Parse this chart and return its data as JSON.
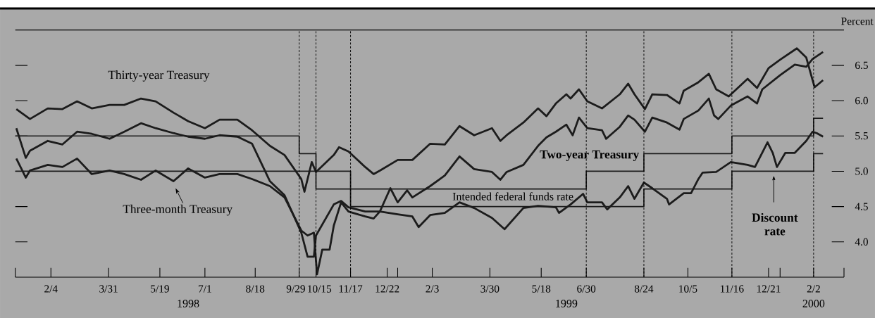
{
  "chart_data": {
    "type": "line",
    "ylabel": "Percent",
    "xlim": [
      "1998-01-01",
      "2000-03-02"
    ],
    "xticks": [
      {
        "value": "1998-01-01",
        "label": null
      },
      {
        "value": "1998-02-04",
        "label": "2/4"
      },
      {
        "value": "1998-03-31",
        "label": "3/31"
      },
      {
        "value": "1998-05-19",
        "label": "5/19"
      },
      {
        "value": "1998-07-01",
        "label": "7/1"
      },
      {
        "value": "1998-08-18",
        "label": "8/18"
      },
      {
        "value": "1998-09-29",
        "label": "9/29"
      },
      {
        "value": "1998-10-15",
        "label": "10/15"
      },
      {
        "value": "1998-11-17",
        "label": "11/17"
      },
      {
        "value": "1998-12-22",
        "label": "12/22"
      },
      {
        "value": "1999-01-01",
        "label": null
      },
      {
        "value": "1999-02-03",
        "label": "2/3"
      },
      {
        "value": "1999-03-30",
        "label": "3/30"
      },
      {
        "value": "1999-05-18",
        "label": "5/18"
      },
      {
        "value": "1999-06-30",
        "label": "6/30"
      },
      {
        "value": "1999-08-24",
        "label": "8/24"
      },
      {
        "value": "1999-10-05",
        "label": "10/5"
      },
      {
        "value": "1999-11-16",
        "label": "11/16"
      },
      {
        "value": "1999-12-21",
        "label": "12/21"
      },
      {
        "value": "2000-01-01",
        "label": null
      },
      {
        "value": "2000-02-02",
        "label": "2/2"
      },
      {
        "value": "2000-03-02",
        "label": null
      }
    ],
    "ylim": [
      3.5,
      7.0
    ],
    "yticks": [
      {
        "value": 4.0,
        "label": "4.0"
      },
      4.5,
      {
        "value": 5.0,
        "label": "5.0"
      },
      5.5,
      {
        "value": 6.0,
        "label": "6.0"
      },
      6.5
    ],
    "series": [
      {
        "name": "Thirty-year Treasury",
        "color": "#1c1c1c",
        "x": [
          "1998-01-02",
          "1998-01-15",
          "1998-02-01",
          "1998-02-15",
          "1998-03-01",
          "1998-03-15",
          "1998-04-01",
          "1998-04-15",
          "1998-05-01",
          "1998-05-15",
          "1998-06-01",
          "1998-06-15",
          "1998-07-01",
          "1998-07-15",
          "1998-08-01",
          "1998-08-15",
          "1998-09-01",
          "1998-09-15",
          "1998-10-01",
          "1998-10-04",
          "1998-10-11",
          "1998-10-15",
          "1998-11-01",
          "1998-11-06",
          "1998-11-15",
          "1998-12-01",
          "1998-12-09",
          "1998-12-15",
          "1999-01-01",
          "1999-01-15",
          "1999-02-01",
          "1999-02-15",
          "1999-03-01",
          "1999-03-15",
          "1999-04-01",
          "1999-04-09",
          "1999-04-15",
          "1999-05-01",
          "1999-05-15",
          "1999-05-23",
          "1999-06-01",
          "1999-06-11",
          "1999-06-15",
          "1999-06-23",
          "1999-07-01",
          "1999-07-15",
          "1999-08-01",
          "1999-08-09",
          "1999-08-15",
          "1999-08-25",
          "1999-09-01",
          "1999-09-15",
          "1999-09-27",
          "1999-10-01",
          "1999-10-15",
          "1999-10-25",
          "1999-11-01",
          "1999-11-13",
          "1999-12-01",
          "1999-12-10",
          "1999-12-21",
          "2000-01-01",
          "2000-01-17",
          "2000-01-26",
          "2000-02-01",
          "2000-02-03",
          "2000-02-11"
        ],
        "values": [
          5.88,
          5.74,
          5.89,
          5.88,
          5.99,
          5.89,
          5.94,
          5.94,
          6.03,
          5.99,
          5.83,
          5.71,
          5.61,
          5.73,
          5.73,
          5.58,
          5.36,
          5.23,
          4.89,
          4.71,
          5.13,
          4.99,
          5.23,
          5.34,
          5.28,
          5.06,
          4.96,
          5.01,
          5.16,
          5.16,
          5.39,
          5.38,
          5.64,
          5.51,
          5.61,
          5.43,
          5.51,
          5.69,
          5.89,
          5.78,
          5.96,
          6.09,
          6.03,
          6.16,
          5.99,
          5.89,
          6.09,
          6.24,
          6.09,
          5.88,
          6.09,
          6.08,
          5.96,
          6.14,
          6.26,
          6.38,
          6.16,
          6.06,
          6.31,
          6.18,
          6.46,
          6.58,
          6.74,
          6.61,
          6.29,
          6.19,
          6.29
        ]
      },
      {
        "name": "Two-year Treasury",
        "color": "#1c1c1c",
        "x": [
          "1998-01-02",
          "1998-01-11",
          "1998-01-15",
          "1998-02-01",
          "1998-02-15",
          "1998-03-01",
          "1998-03-15",
          "1998-04-01",
          "1998-04-15",
          "1998-05-01",
          "1998-05-15",
          "1998-06-01",
          "1998-06-15",
          "1998-07-01",
          "1998-07-15",
          "1998-08-01",
          "1998-08-15",
          "1998-09-01",
          "1998-09-15",
          "1998-10-01",
          "1998-10-07",
          "1998-10-13",
          "1998-10-15",
          "1998-11-01",
          "1998-11-08",
          "1998-11-15",
          "1998-12-01",
          "1998-12-15",
          "1998-12-25",
          "1999-01-01",
          "1999-01-10",
          "1999-01-15",
          "1999-02-01",
          "1999-02-15",
          "1999-03-01",
          "1999-03-15",
          "1999-04-01",
          "1999-04-09",
          "1999-04-15",
          "1999-05-01",
          "1999-05-15",
          "1999-05-23",
          "1999-06-01",
          "1999-06-11",
          "1999-06-17",
          "1999-06-23",
          "1999-07-01",
          "1999-07-15",
          "1999-07-19",
          "1999-08-01",
          "1999-08-09",
          "1999-08-15",
          "1999-08-25",
          "1999-09-01",
          "1999-09-15",
          "1999-09-27",
          "1999-10-01",
          "1999-10-15",
          "1999-10-25",
          "1999-10-30",
          "1999-11-03",
          "1999-11-15",
          "1999-12-01",
          "1999-12-10",
          "1999-12-15",
          "2000-01-01",
          "2000-01-15",
          "2000-01-26",
          "2000-02-01",
          "2000-02-11"
        ],
        "values": [
          5.61,
          5.19,
          5.29,
          5.43,
          5.38,
          5.56,
          5.53,
          5.46,
          5.56,
          5.68,
          5.61,
          5.54,
          5.49,
          5.46,
          5.51,
          5.49,
          5.39,
          4.86,
          4.66,
          4.13,
          3.79,
          3.79,
          4.09,
          4.53,
          4.58,
          4.49,
          4.43,
          4.43,
          4.76,
          4.56,
          4.73,
          4.63,
          4.79,
          4.94,
          5.21,
          5.03,
          4.99,
          4.88,
          4.99,
          5.09,
          5.36,
          5.48,
          5.56,
          5.66,
          5.51,
          5.76,
          5.61,
          5.58,
          5.46,
          5.63,
          5.79,
          5.73,
          5.56,
          5.76,
          5.69,
          5.59,
          5.74,
          5.86,
          6.03,
          5.79,
          5.74,
          5.93,
          6.06,
          5.96,
          6.16,
          6.36,
          6.51,
          6.48,
          6.59,
          6.69
        ]
      },
      {
        "name": "Three-month Treasury",
        "color": "#1c1c1c",
        "x": [
          "1998-01-02",
          "1998-01-11",
          "1998-01-15",
          "1998-02-01",
          "1998-02-15",
          "1998-03-01",
          "1998-03-15",
          "1998-04-01",
          "1998-04-15",
          "1998-05-01",
          "1998-05-15",
          "1998-06-01",
          "1998-06-15",
          "1998-07-01",
          "1998-07-15",
          "1998-08-01",
          "1998-08-15",
          "1998-09-01",
          "1998-09-15",
          "1998-10-01",
          "1998-10-07",
          "1998-10-13",
          "1998-10-16",
          "1998-10-21",
          "1998-10-28",
          "1998-11-01",
          "1998-11-08",
          "1998-11-15",
          "1998-12-01",
          "1998-12-09",
          "1998-12-15",
          "1999-01-01",
          "1999-01-15",
          "1999-01-21",
          "1999-02-01",
          "1999-02-15",
          "1999-03-01",
          "1999-03-15",
          "1999-04-01",
          "1999-04-13",
          "1999-05-01",
          "1999-05-15",
          "1999-06-01",
          "1999-06-04",
          "1999-06-15",
          "1999-06-27",
          "1999-07-01",
          "1999-07-15",
          "1999-07-20",
          "1999-08-01",
          "1999-08-09",
          "1999-08-15",
          "1999-08-24",
          "1999-09-01",
          "1999-09-15",
          "1999-09-17",
          "1999-10-01",
          "1999-10-08",
          "1999-10-15",
          "1999-10-19",
          "1999-11-01",
          "1999-11-15",
          "1999-12-01",
          "1999-12-08",
          "1999-12-20",
          "1999-12-25",
          "1999-12-29",
          "2000-01-06",
          "2000-01-15",
          "2000-01-26",
          "2000-02-01",
          "2000-02-05",
          "2000-02-11"
        ],
        "values": [
          5.18,
          4.91,
          5.01,
          5.09,
          5.06,
          5.18,
          4.96,
          5.01,
          4.96,
          4.88,
          5.01,
          4.86,
          5.04,
          4.91,
          4.96,
          4.96,
          4.89,
          4.79,
          4.63,
          4.16,
          4.09,
          4.13,
          3.54,
          3.89,
          3.89,
          4.23,
          4.56,
          4.43,
          4.36,
          4.33,
          4.43,
          4.39,
          4.36,
          4.21,
          4.38,
          4.41,
          4.56,
          4.48,
          4.34,
          4.18,
          4.48,
          4.51,
          4.49,
          4.41,
          4.53,
          4.68,
          4.56,
          4.56,
          4.46,
          4.63,
          4.79,
          4.61,
          4.84,
          4.76,
          4.61,
          4.53,
          4.69,
          4.69,
          4.89,
          4.98,
          4.99,
          5.13,
          5.09,
          5.06,
          5.41,
          5.26,
          5.06,
          5.26,
          5.26,
          5.43,
          5.56,
          5.54,
          5.49
        ]
      },
      {
        "name": "Intended federal funds rate",
        "type": "step",
        "color": "#1c1c1c",
        "x": [
          "1998-01-01",
          "1998-09-29",
          "1998-10-15",
          "1998-11-17",
          "1999-06-30",
          "1999-08-24",
          "1999-11-16",
          "2000-02-02",
          "2000-02-11"
        ],
        "values": [
          5.5,
          5.25,
          5.0,
          4.75,
          5.0,
          5.25,
          5.5,
          5.75,
          5.75
        ]
      },
      {
        "name": "Discount rate",
        "type": "step",
        "color": "#1c1c1c",
        "x": [
          "1998-01-01",
          "1998-10-15",
          "1998-11-17",
          "1999-08-24",
          "1999-11-16",
          "2000-02-02",
          "2000-02-11"
        ],
        "values": [
          5.0,
          4.75,
          4.5,
          4.75,
          5.0,
          5.25,
          5.25
        ]
      }
    ],
    "ref_lines": [
      {
        "axis": "x",
        "value": "1998-09-29",
        "line_style": "dashed"
      },
      {
        "axis": "x",
        "value": "1998-10-15",
        "line_style": "dashed"
      },
      {
        "axis": "x",
        "value": "1998-11-17",
        "line_style": "dashed"
      },
      {
        "axis": "x",
        "value": "1999-06-30",
        "line_style": "dashed"
      },
      {
        "axis": "x",
        "value": "1999-08-24",
        "line_style": "dashed"
      },
      {
        "axis": "x",
        "value": "1999-11-16",
        "line_style": "dashed"
      },
      {
        "axis": "x",
        "value": "2000-02-02",
        "line_style": "dashed"
      }
    ],
    "annotations": [
      "1998",
      "1999",
      "2000"
    ]
  }
}
